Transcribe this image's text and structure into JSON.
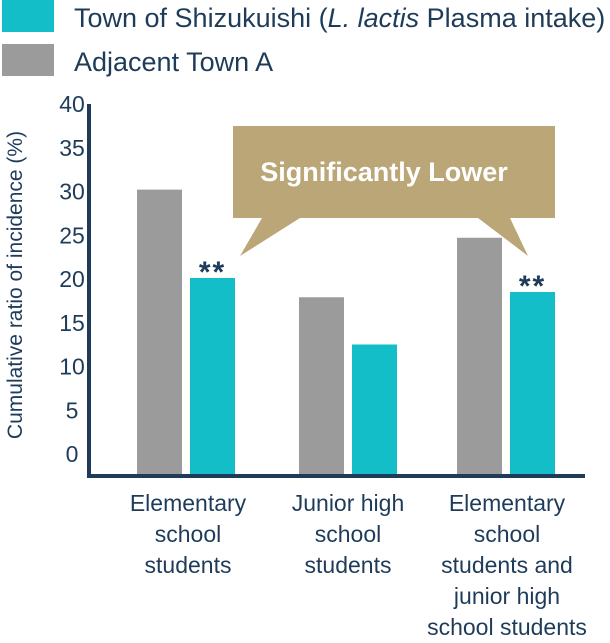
{
  "colors": {
    "town_shizukuishi": "#14bec8",
    "adjacent_town_a": "#9b9b9b",
    "axis": "#1e3c5a",
    "callout": "#bba677"
  },
  "legend": {
    "items": [
      {
        "label_prefix": "Town of Shizukuishi (",
        "label_italic": "L. lactis",
        "label_suffix": " Plasma intake)",
        "color_key": "town_shizukuishi"
      },
      {
        "label": "Adjacent Town A",
        "color_key": "adjacent_town_a"
      }
    ]
  },
  "callout": {
    "text": "Significantly Lower"
  },
  "chart_data": {
    "type": "bar",
    "ylabel": "Cumulative ratio of incidence (%)",
    "xlabel": "",
    "ylim": [
      0,
      40
    ],
    "yticks": [
      "0",
      "5",
      "10",
      "15",
      "20",
      "25",
      "30",
      "35",
      "40"
    ],
    "categories": [
      [
        "Elementary",
        "school",
        "students"
      ],
      [
        "Junior high",
        "school",
        "students"
      ],
      [
        "Elementary",
        "school",
        "students and",
        "junior high",
        "school students"
      ]
    ],
    "series": [
      {
        "name": "Adjacent Town A",
        "color_key": "adjacent_town_a",
        "values": [
          32.5,
          20.2,
          27.0
        ]
      },
      {
        "name": "Town of Shizukuishi (L. lactis Plasma intake)",
        "color_key": "town_shizukuishi",
        "values": [
          22.4,
          14.8,
          20.8
        ]
      }
    ],
    "significance_marks": [
      {
        "category_index": 0,
        "series_index": 1,
        "text": "**"
      },
      {
        "category_index": 2,
        "series_index": 1,
        "text": "**"
      }
    ]
  }
}
